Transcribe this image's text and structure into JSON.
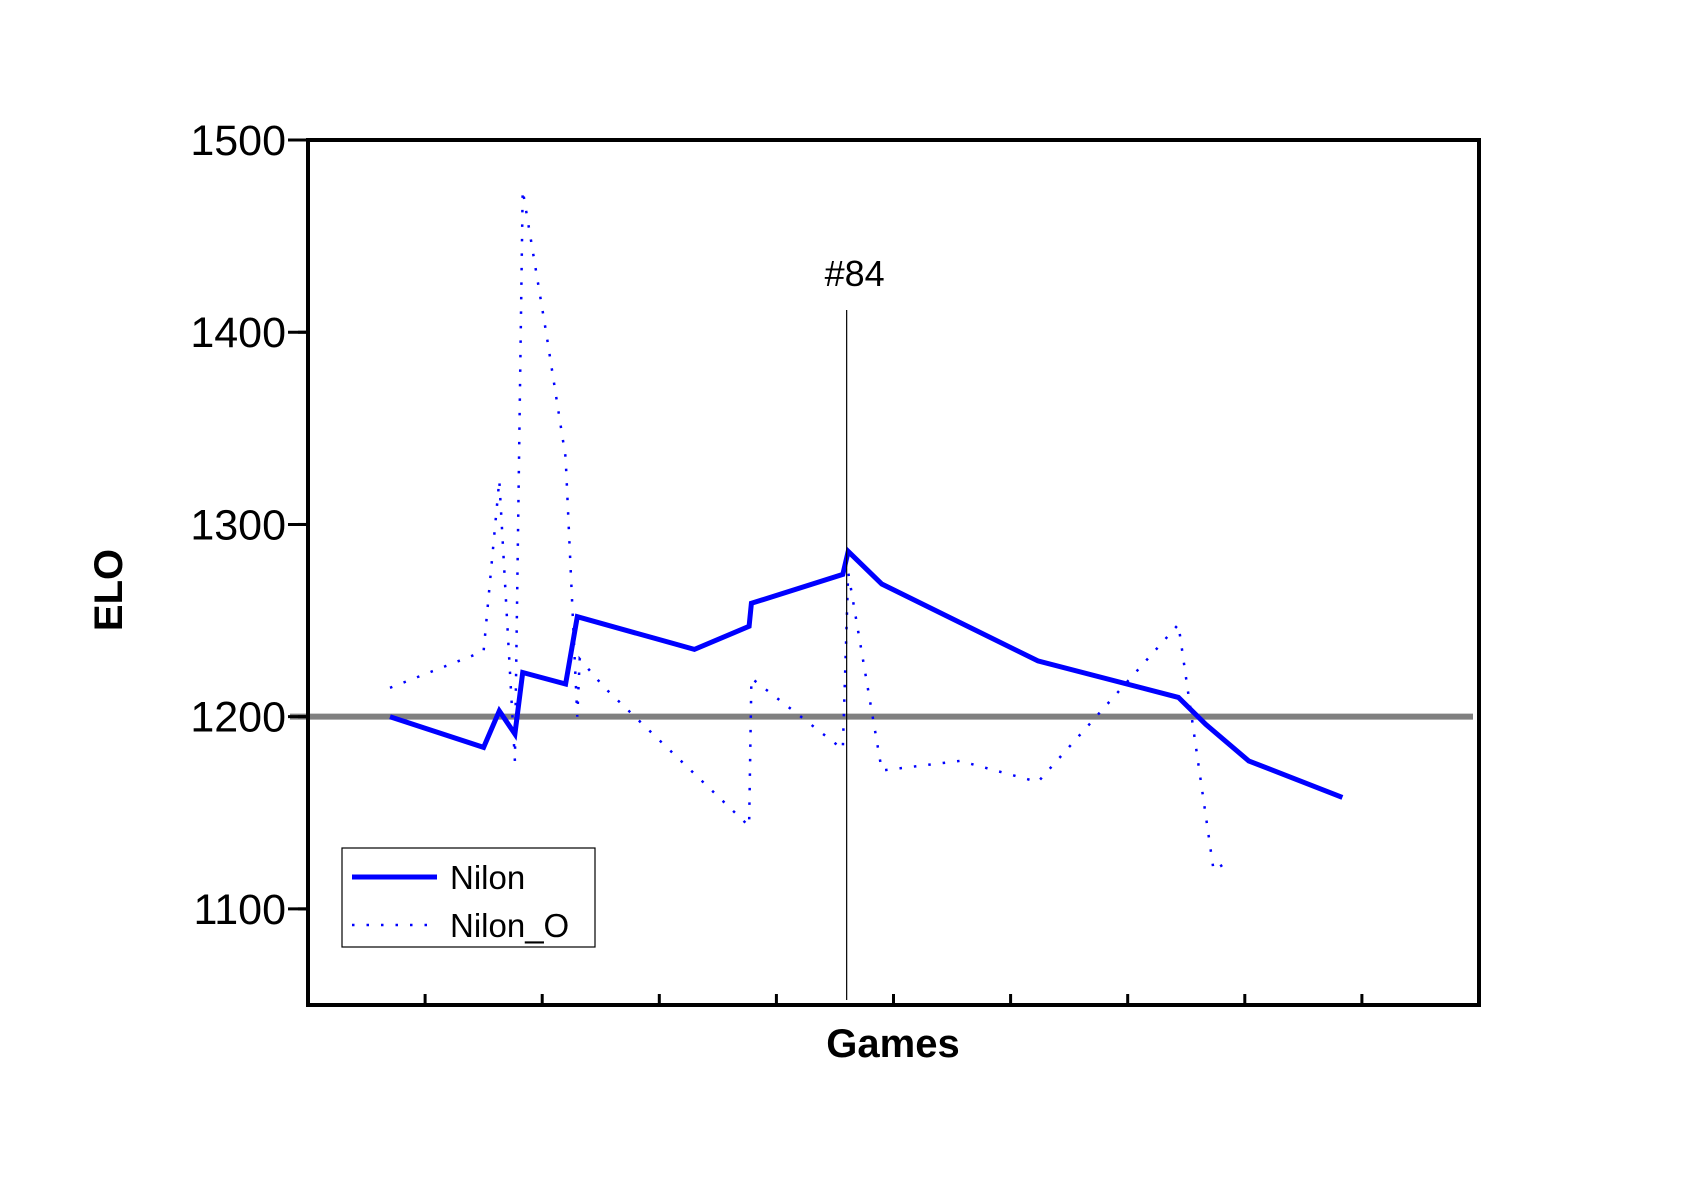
{
  "chart_data": {
    "type": "line",
    "title": "",
    "xlabel": "Games",
    "ylabel": "ELO",
    "xlim": [
      0,
      150
    ],
    "ylim": [
      1050,
      1500
    ],
    "xticks_minor": [
      15,
      30,
      45,
      60,
      75,
      90,
      105,
      120,
      135
    ],
    "yticks": [
      1100,
      1200,
      1300,
      1400,
      1500
    ],
    "ytick_labels": [
      "1100",
      "1200",
      "1300",
      "1400",
      "1500"
    ],
    "grid": false,
    "legend_position": "bottom-left",
    "reference_line": {
      "y": 1200,
      "color": "#808080"
    },
    "annotation": {
      "x": 69,
      "label": "#84"
    },
    "series": [
      {
        "name": "Nilon",
        "style": "solid",
        "color": "#0000ff",
        "points": [
          [
            10.5,
            1200
          ],
          [
            22.5,
            1184
          ],
          [
            24.5,
            1203
          ],
          [
            26.5,
            1191
          ],
          [
            27.5,
            1223
          ],
          [
            33,
            1217
          ],
          [
            34.5,
            1252
          ],
          [
            49.5,
            1235
          ],
          [
            56.5,
            1247
          ],
          [
            56.8,
            1259
          ],
          [
            68.5,
            1274
          ],
          [
            69.2,
            1286
          ],
          [
            73.5,
            1269
          ],
          [
            83.5,
            1249
          ],
          [
            93.5,
            1229
          ],
          [
            111.5,
            1210
          ],
          [
            115,
            1196
          ],
          [
            120.5,
            1177
          ],
          [
            132.5,
            1158
          ]
        ]
      },
      {
        "name": "Nilon_O",
        "style": "dotted",
        "color": "#0000ff",
        "points": [
          [
            10.5,
            1215
          ],
          [
            22.5,
            1234
          ],
          [
            24.5,
            1323
          ],
          [
            26.5,
            1177
          ],
          [
            27.5,
            1474
          ],
          [
            30.5,
            1400
          ],
          [
            33,
            1335
          ],
          [
            34.5,
            1200
          ],
          [
            34.8,
            1230
          ],
          [
            38,
            1215
          ],
          [
            56.5,
            1143
          ],
          [
            56.8,
            1220
          ],
          [
            68.5,
            1183
          ],
          [
            69.2,
            1275
          ],
          [
            73.5,
            1172
          ],
          [
            83.5,
            1177
          ],
          [
            93.5,
            1166
          ],
          [
            111.5,
            1248
          ],
          [
            116,
            1120
          ],
          [
            118,
            1125
          ]
        ]
      }
    ]
  }
}
